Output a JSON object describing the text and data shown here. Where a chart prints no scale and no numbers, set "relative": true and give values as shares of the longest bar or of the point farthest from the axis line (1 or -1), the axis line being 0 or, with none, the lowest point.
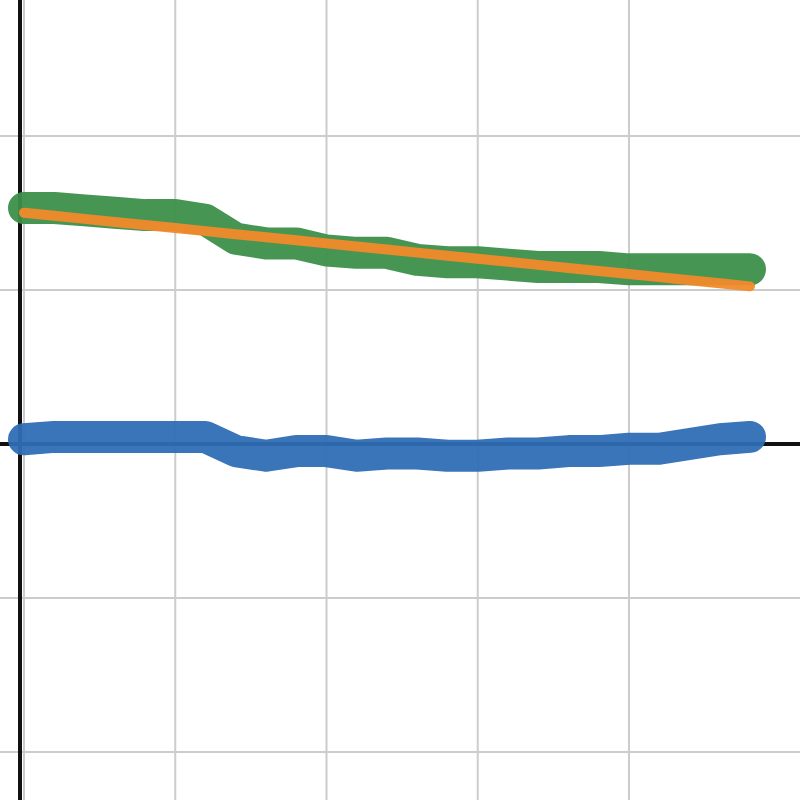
{
  "chart_data": {
    "type": "line",
    "relative": true,
    "grid": true,
    "line_style": "solid",
    "categories": [
      null,
      null,
      null,
      null,
      null,
      null,
      null,
      null,
      null,
      null,
      null,
      null,
      null,
      null,
      null,
      null,
      null,
      null,
      null,
      null,
      null,
      null,
      null,
      null,
      null
    ],
    "series": [
      {
        "color": "#3d8f4a",
        "values": [
          1.0,
          1.0,
          0.99,
          0.98,
          0.97,
          0.97,
          0.95,
          0.87,
          0.85,
          0.85,
          0.82,
          0.81,
          0.81,
          0.78,
          0.77,
          0.77,
          0.76,
          0.75,
          0.75,
          0.75,
          0.74,
          0.74,
          0.74,
          0.74,
          0.74
        ]
      },
      {
        "color": "#2f6db5",
        "values": [
          0.02,
          0.03,
          0.03,
          0.03,
          0.03,
          0.03,
          0.03,
          -0.03,
          -0.05,
          -0.03,
          -0.03,
          -0.05,
          -0.04,
          -0.04,
          -0.05,
          -0.05,
          -0.04,
          -0.04,
          -0.03,
          -0.03,
          -0.02,
          -0.02,
          0,
          0.02,
          0.03
        ]
      },
      {
        "color": "#f28a2b",
        "values": [
          0.98,
          0.967,
          0.954,
          0.941,
          0.928,
          0.915,
          0.902,
          0.889,
          0.876,
          0.863,
          0.85,
          0.837,
          0.824,
          0.811,
          0.798,
          0.785,
          0.772,
          0.759,
          0.746,
          0.733,
          0.72,
          0.707,
          0.694,
          0.681,
          0.668
        ]
      }
    ]
  }
}
